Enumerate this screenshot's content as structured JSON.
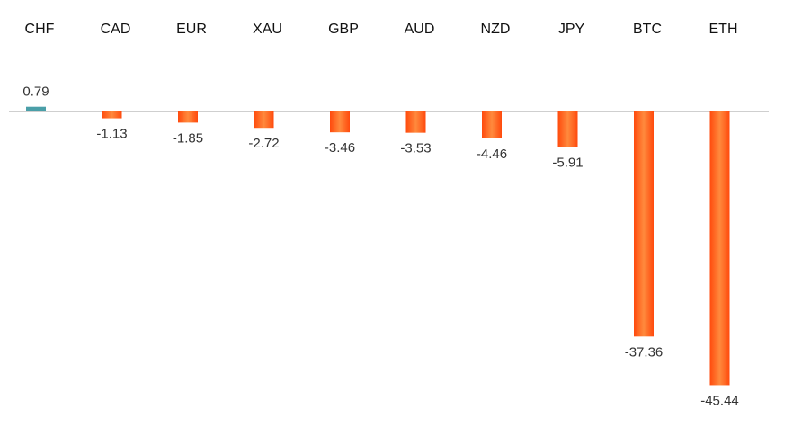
{
  "chart_data": {
    "type": "bar",
    "categories": [
      "CHF",
      "CAD",
      "EUR",
      "XAU",
      "GBP",
      "AUD",
      "NZD",
      "JPY",
      "BTC",
      "ETH"
    ],
    "values": [
      0.79,
      -1.13,
      -1.85,
      -2.72,
      -3.46,
      -3.53,
      -4.46,
      -5.91,
      -37.36,
      -45.44
    ],
    "value_labels": [
      "0.79",
      "-1.13",
      "-1.85",
      "-2.72",
      "-3.46",
      "-3.53",
      "-4.46",
      "-5.91",
      "-37.36",
      "-45.44"
    ],
    "title": "",
    "xlabel": "",
    "ylabel": "",
    "ylim": [
      -46,
      1
    ],
    "grid": false,
    "legend": "none",
    "category_axis_position": "top",
    "colors": {
      "positive": "#4a9fa8",
      "negative": "#ff4a0d",
      "negative_light": "#ff8a3d",
      "axis": "#bfbfbf"
    }
  }
}
